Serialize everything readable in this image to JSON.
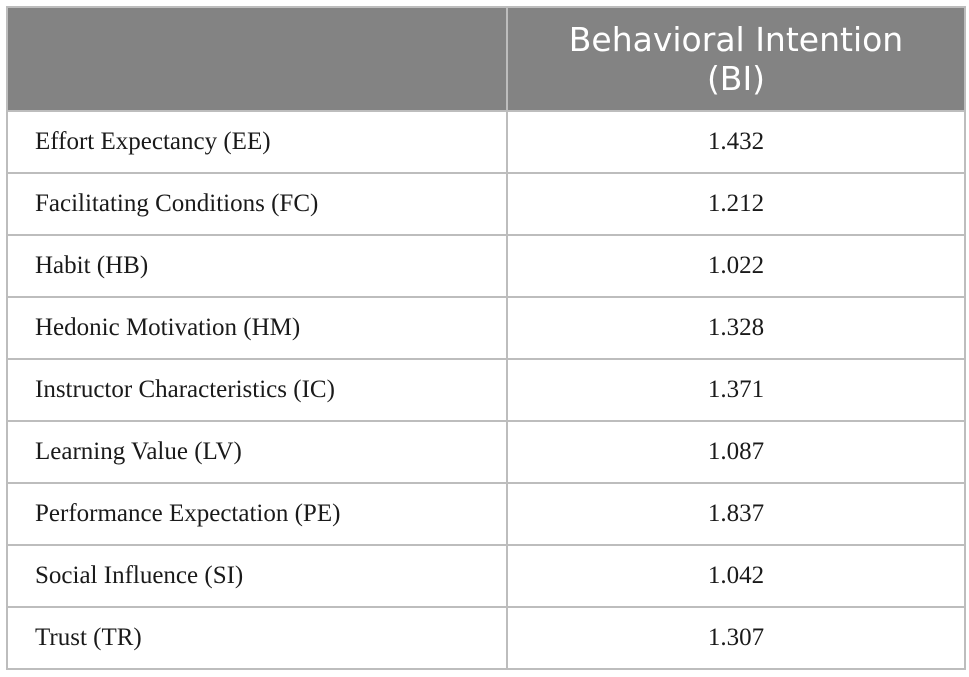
{
  "table": {
    "header": {
      "first": "",
      "second_line1": "Behavioral Intention",
      "second_line2": "(BI)"
    },
    "rows": [
      {
        "label": "Effort Expectancy (EE)",
        "value": "1.432"
      },
      {
        "label": "Facilitating Conditions (FC)",
        "value": "1.212"
      },
      {
        "label": "Habit (HB)",
        "value": "1.022"
      },
      {
        "label": "Hedonic Motivation (HM)",
        "value": "1.328"
      },
      {
        "label": "Instructor Characteristics (IC)",
        "value": "1.371"
      },
      {
        "label": "Learning Value (LV)",
        "value": "1.087"
      },
      {
        "label": "Performance Expectation (PE)",
        "value": "1.837"
      },
      {
        "label": "Social Influence (SI)",
        "value": "1.042"
      },
      {
        "label": "Trust (TR)",
        "value": "1.307"
      }
    ]
  },
  "colors": {
    "header_background": "#838383",
    "header_text": "#ffffff",
    "grid_lines": "#bdbdbd",
    "body_text": "#1a1a1a"
  }
}
